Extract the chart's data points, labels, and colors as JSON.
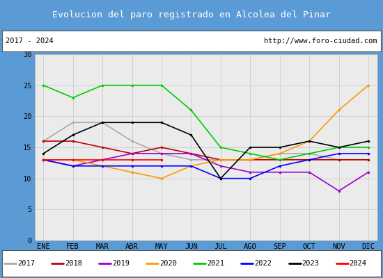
{
  "title": "Evolucion del paro registrado en Alcolea del Pinar",
  "title_color": "#ffffff",
  "title_bg": "#5b9bd5",
  "subtitle_left": "2017 - 2024",
  "subtitle_right": "http://www.foro-ciudad.com",
  "months": [
    "ENE",
    "FEB",
    "MAR",
    "ABR",
    "MAY",
    "JUN",
    "JUL",
    "AGO",
    "SEP",
    "OCT",
    "NOV",
    "DIC"
  ],
  "ylim": [
    0,
    30
  ],
  "yticks": [
    0,
    5,
    10,
    15,
    20,
    25,
    30
  ],
  "series": {
    "2017": {
      "color": "#aaaaaa",
      "values": [
        16,
        19,
        19,
        16,
        14,
        13,
        13,
        13,
        14,
        14,
        13,
        13
      ]
    },
    "2018": {
      "color": "#c00000",
      "values": [
        16,
        16,
        15,
        14,
        15,
        14,
        13,
        13,
        13,
        13,
        13,
        13
      ]
    },
    "2019": {
      "color": "#9900cc",
      "values": [
        13,
        12,
        13,
        14,
        14,
        14,
        12,
        11,
        11,
        11,
        8,
        11
      ]
    },
    "2020": {
      "color": "#ff9900",
      "values": [
        13,
        13,
        12,
        11,
        10,
        12,
        13,
        13,
        14,
        16,
        21,
        25
      ]
    },
    "2021": {
      "color": "#00cc00",
      "values": [
        25,
        23,
        25,
        25,
        25,
        21,
        15,
        14,
        13,
        14,
        15,
        15
      ]
    },
    "2022": {
      "color": "#0000ff",
      "values": [
        13,
        12,
        12,
        12,
        12,
        12,
        10,
        10,
        12,
        13,
        14,
        14
      ]
    },
    "2023": {
      "color": "#000000",
      "values": [
        14,
        17,
        19,
        19,
        19,
        17,
        10,
        15,
        15,
        16,
        15,
        16
      ]
    },
    "2024": {
      "color": "#ff0000",
      "values": [
        13,
        13,
        13,
        13,
        13,
        null,
        null,
        null,
        null,
        null,
        null,
        null
      ]
    }
  },
  "bg_color": "#e8e8e8",
  "plot_bg": "#ebebeb",
  "grid_color": "#cccccc",
  "border_color": "#5b9bd5"
}
